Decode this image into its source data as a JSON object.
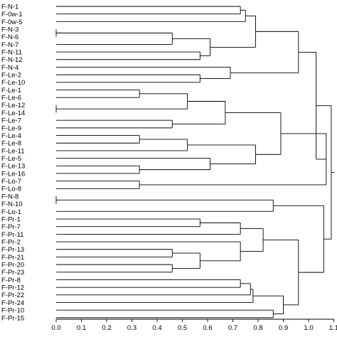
{
  "chart_data": {
    "type": "dendrogram",
    "orientation": "left-to-right",
    "x_axis": {
      "range": [
        0,
        1.1
      ],
      "ticks": [
        "0.0",
        "0.1",
        "0.2",
        "0.3",
        "0.4",
        "0.5",
        "0.6",
        "0.7",
        "0.8",
        "0.9",
        "1.0",
        "1.1"
      ]
    },
    "leaves": [
      "F-N-1",
      "F-0w-1",
      "F-0w-5",
      "F-N-3",
      "F-N-6",
      "F-N-7",
      "F-N-11",
      "F-N-12",
      "F-N-4",
      "F-Le-2",
      "F-Le-10",
      "F-Le-1",
      "F-Le-6",
      "F-Le-12",
      "F-Le-14",
      "F-Le-7",
      "F-Le-9",
      "F-Le-4",
      "F-Le-8",
      "F-Le-11",
      "F-Le-5",
      "F-Le-13",
      "F-Le-16",
      "F-Lo-7",
      "F-Lo-8",
      "F-N-8",
      "F-N-10",
      "F-Lo-1",
      "F-Pr-1",
      "F-Pr-7",
      "F-Pr-11",
      "F-Pr-2",
      "F-Pr-13",
      "F-Pr-21",
      "F-Pr-20",
      "F-Pr-23",
      "F-Pr-8",
      "F-Pr-12",
      "F-Pr-22",
      "F-Pr-24",
      "F-Pr-10",
      "F-Pr-15"
    ],
    "merges": [
      {
        "children": [
          0,
          1
        ],
        "height": 0.73
      },
      {
        "children": [
          3,
          4
        ],
        "height": 0.0
      },
      {
        "children": [
          "n1",
          5
        ],
        "height": 0.46
      },
      {
        "children": [
          6,
          7
        ],
        "height": 0.57
      },
      {
        "children": [
          "n2",
          "n3"
        ],
        "height": 0.61
      },
      {
        "children": [
          "n0",
          2
        ],
        "height": 0.75
      },
      {
        "children": [
          "n5",
          "n4"
        ],
        "height": 0.79
      },
      {
        "children": [
          9,
          10
        ],
        "height": 0.57
      },
      {
        "children": [
          8,
          "n7"
        ],
        "height": 0.69
      },
      {
        "children": [
          "n6",
          "n8"
        ],
        "height": 0.96
      },
      {
        "children": [
          11,
          12
        ],
        "height": 0.33
      },
      {
        "children": [
          13,
          14
        ],
        "height": 0.0
      },
      {
        "children": [
          "n10",
          "n11"
        ],
        "height": 0.52
      },
      {
        "children": [
          15,
          16
        ],
        "height": 0.46
      },
      {
        "children": [
          "n12",
          "n13"
        ],
        "height": 0.67
      },
      {
        "children": [
          17,
          18
        ],
        "height": 0.33
      },
      {
        "children": [
          "n15",
          19
        ],
        "height": 0.52
      },
      {
        "children": [
          21,
          22
        ],
        "height": 0.33
      },
      {
        "children": [
          20,
          "n17"
        ],
        "height": 0.61
      },
      {
        "children": [
          "n16",
          "n18"
        ],
        "height": 0.79
      },
      {
        "children": [
          "n14",
          "n19"
        ],
        "height": 0.89
      },
      {
        "children": [
          23,
          24
        ],
        "height": 0.33
      },
      {
        "children": [
          "n20",
          "n21"
        ],
        "height": 1.07
      },
      {
        "children": [
          "n9",
          "n22"
        ],
        "height": 1.03
      },
      {
        "children": [
          25,
          26
        ],
        "height": 0.0
      },
      {
        "children": [
          "n24",
          27
        ],
        "height": 0.86
      },
      {
        "children": [
          28,
          29
        ],
        "height": 0.57
      },
      {
        "children": [
          "n26",
          30
        ],
        "height": 0.73
      },
      {
        "children": [
          32,
          33
        ],
        "height": 0.46
      },
      {
        "children": [
          34,
          35
        ],
        "height": 0.46
      },
      {
        "children": [
          "n28",
          "n29"
        ],
        "height": 0.57
      },
      {
        "children": [
          31,
          "n30"
        ],
        "height": 0.73
      },
      {
        "children": [
          "n27",
          "n31"
        ],
        "height": 0.82
      },
      {
        "children": [
          36,
          37
        ],
        "height": 0.73
      },
      {
        "children": [
          "n33",
          38
        ],
        "height": 0.77
      },
      {
        "children": [
          "n34",
          39
        ],
        "height": 0.78
      },
      {
        "children": [
          40,
          41
        ],
        "height": 0.86
      },
      {
        "children": [
          "n35",
          "n36"
        ],
        "height": 0.9
      },
      {
        "children": [
          "n32",
          "n37"
        ],
        "height": 0.96
      },
      {
        "children": [
          "n25",
          "n38"
        ],
        "height": 1.06
      },
      {
        "children": [
          "n23",
          "n39"
        ],
        "height": 1.09
      }
    ]
  }
}
